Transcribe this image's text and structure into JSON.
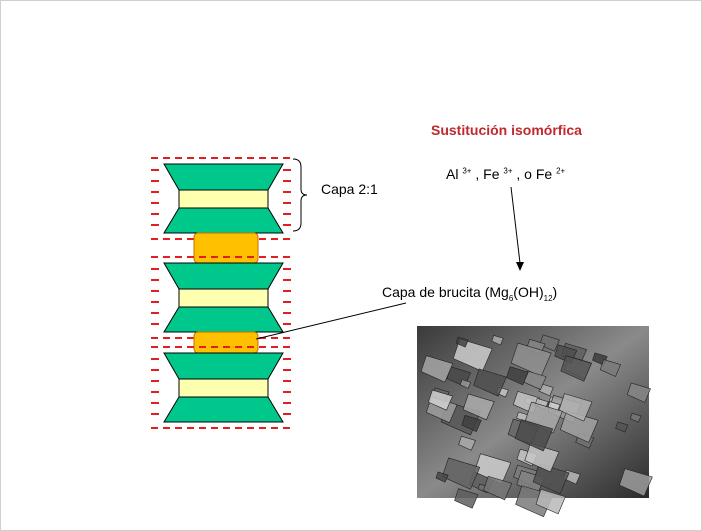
{
  "title": "Sustitución isomórfica",
  "substitution": {
    "al": "Al",
    "al_charge": "3+",
    "fe": ", Fe",
    "fe_charge": "3+",
    "or_fe": ", o Fe",
    "or_fe_charge": "2+"
  },
  "layer_label": "Capa 2:1",
  "brucite": {
    "text": "Capa de brucita (Mg",
    "mg_sub": "6",
    "oh": "(OH)",
    "oh_sub": "12",
    "close": ")"
  }
}
